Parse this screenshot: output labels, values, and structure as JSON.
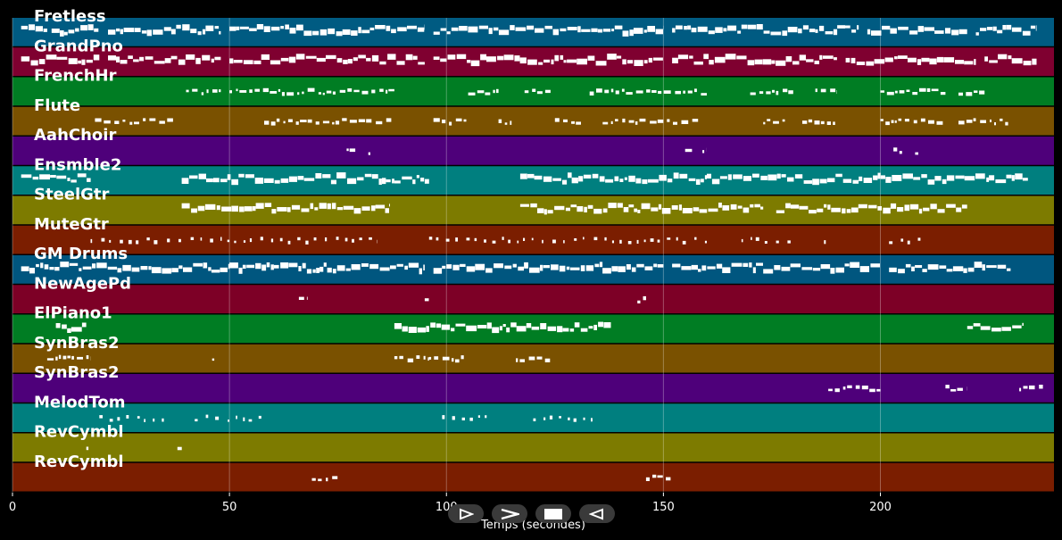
{
  "chart_data": {
    "type": "piano-roll",
    "xlabel": "Temps (secondes)",
    "xlim": [
      0,
      240
    ],
    "xticks": [
      0,
      50,
      100,
      150,
      200
    ],
    "grid": true,
    "tracks": [
      {
        "name": "Fretless",
        "color": "#005b82",
        "notes": [
          [
            2,
            8
          ],
          [
            9,
            20
          ],
          [
            22,
            48
          ],
          [
            50,
            95
          ],
          [
            97,
            150
          ],
          [
            152,
            195
          ],
          [
            197,
            220
          ],
          [
            222,
            236
          ]
        ],
        "dense": true
      },
      {
        "name": "GrandPno",
        "color": "#7f0030",
        "notes": [
          [
            2,
            20
          ],
          [
            22,
            48
          ],
          [
            50,
            95
          ],
          [
            97,
            150
          ],
          [
            152,
            190
          ],
          [
            192,
            222
          ],
          [
            224,
            236
          ]
        ],
        "dense": true
      },
      {
        "name": "FrenchHr",
        "color": "#007d23",
        "notes": [
          [
            40,
            48
          ],
          [
            50,
            88
          ],
          [
            105,
            112
          ],
          [
            118,
            124
          ],
          [
            133,
            160
          ],
          [
            170,
            180
          ],
          [
            185,
            190
          ],
          [
            200,
            215
          ],
          [
            218,
            224
          ]
        ]
      },
      {
        "name": "Flute",
        "color": "#7a5100",
        "notes": [
          [
            19,
            26
          ],
          [
            27,
            37
          ],
          [
            58,
            88
          ],
          [
            97,
            105
          ],
          [
            112,
            115
          ],
          [
            125,
            132
          ],
          [
            136,
            158
          ],
          [
            173,
            178
          ],
          [
            182,
            190
          ],
          [
            200,
            215
          ],
          [
            218,
            230
          ]
        ]
      },
      {
        "name": "AahChoir",
        "color": "#4e007a",
        "notes": [
          [
            77,
            79
          ],
          [
            82,
            83
          ],
          [
            155,
            157
          ],
          [
            159,
            160
          ],
          [
            203,
            205
          ],
          [
            208,
            209
          ]
        ]
      },
      {
        "name": "Ensmble2",
        "color": "#007f7f",
        "notes": [
          [
            2,
            18
          ],
          [
            39,
            88
          ],
          [
            88,
            96
          ],
          [
            117,
            160
          ],
          [
            160,
            195
          ],
          [
            195,
            225
          ],
          [
            225,
            234
          ]
        ],
        "dense": true
      },
      {
        "name": "SteelGtr",
        "color": "#7d7b00",
        "notes": [
          [
            39,
            87
          ],
          [
            117,
            173
          ],
          [
            176,
            220
          ]
        ],
        "dense": true
      },
      {
        "name": "MuteGtr",
        "color": "#7b1e00",
        "notes": [
          [
            18,
            84
          ],
          [
            96,
            160
          ],
          [
            168,
            180
          ],
          [
            187,
            188
          ],
          [
            202,
            210
          ]
        ],
        "sparse": true
      },
      {
        "name": "GM Drums",
        "color": "#00567f",
        "notes": [
          [
            2,
            50
          ],
          [
            50,
            95
          ],
          [
            97,
            150
          ],
          [
            152,
            200
          ],
          [
            202,
            230
          ]
        ],
        "dense": true
      },
      {
        "name": "NewAgePd",
        "color": "#7d0026",
        "notes": [
          [
            66,
            68
          ],
          [
            95,
            96
          ],
          [
            144,
            146
          ]
        ]
      },
      {
        "name": "ElPiano1",
        "color": "#007d23",
        "notes": [
          [
            10,
            17
          ],
          [
            88,
            138
          ],
          [
            220,
            233
          ]
        ],
        "dense": true
      },
      {
        "name": "SynBras2",
        "color": "#7a5100",
        "notes": [
          [
            8,
            18
          ],
          [
            46,
            47
          ],
          [
            88,
            96
          ],
          [
            96,
            104
          ],
          [
            116,
            124
          ]
        ]
      },
      {
        "name": "SynBras2",
        "color": "#4e007a",
        "notes": [
          [
            188,
            200
          ],
          [
            215,
            220
          ],
          [
            232,
            238
          ]
        ]
      },
      {
        "name": "MelodTom",
        "color": "#007f7f",
        "notes": [
          [
            20,
            36
          ],
          [
            42,
            58
          ],
          [
            99,
            110
          ],
          [
            120,
            135
          ]
        ],
        "sparse": true
      },
      {
        "name": "RevCymbl",
        "color": "#7d7b00",
        "notes": [
          [
            17,
            18
          ],
          [
            38,
            39
          ]
        ]
      },
      {
        "name": "RevCymbl",
        "color": "#7b1e00",
        "notes": [
          [
            69,
            75
          ],
          [
            146,
            152
          ]
        ]
      }
    ]
  },
  "controls": [
    "play-forward",
    "fast-forward",
    "stop",
    "rewind"
  ]
}
